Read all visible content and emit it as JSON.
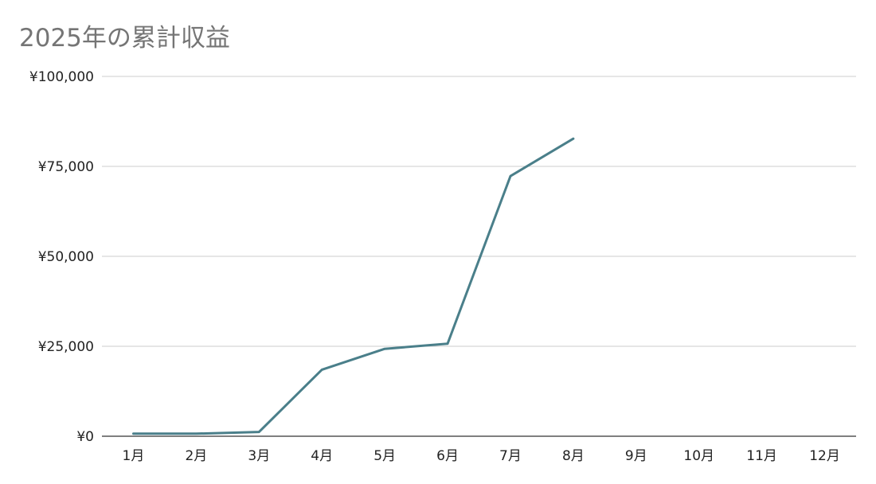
{
  "chart_data": {
    "type": "line",
    "title": "2025年の累計収益",
    "xlabel": "",
    "ylabel": "",
    "categories": [
      "1月",
      "2月",
      "3月",
      "4月",
      "5月",
      "6月",
      "7月",
      "8月",
      "9月",
      "10月",
      "11月",
      "12月"
    ],
    "series": [
      {
        "values": [
          700,
          700,
          1200,
          18500,
          24300,
          25700,
          72300,
          82700,
          null,
          null,
          null,
          null
        ],
        "color": "#4a7f8a"
      }
    ],
    "ylim": [
      0,
      100000
    ],
    "y_ticks": [
      {
        "value": 0,
        "label": "¥0"
      },
      {
        "value": 25000,
        "label": "¥25,000"
      },
      {
        "value": 50000,
        "label": "¥50,000"
      },
      {
        "value": 75000,
        "label": "¥75,000"
      },
      {
        "value": 100000,
        "label": "¥100,000"
      }
    ],
    "grid": true,
    "legend": "none",
    "colors": {
      "gridline": "#cccccc",
      "axis": "#333333"
    }
  }
}
